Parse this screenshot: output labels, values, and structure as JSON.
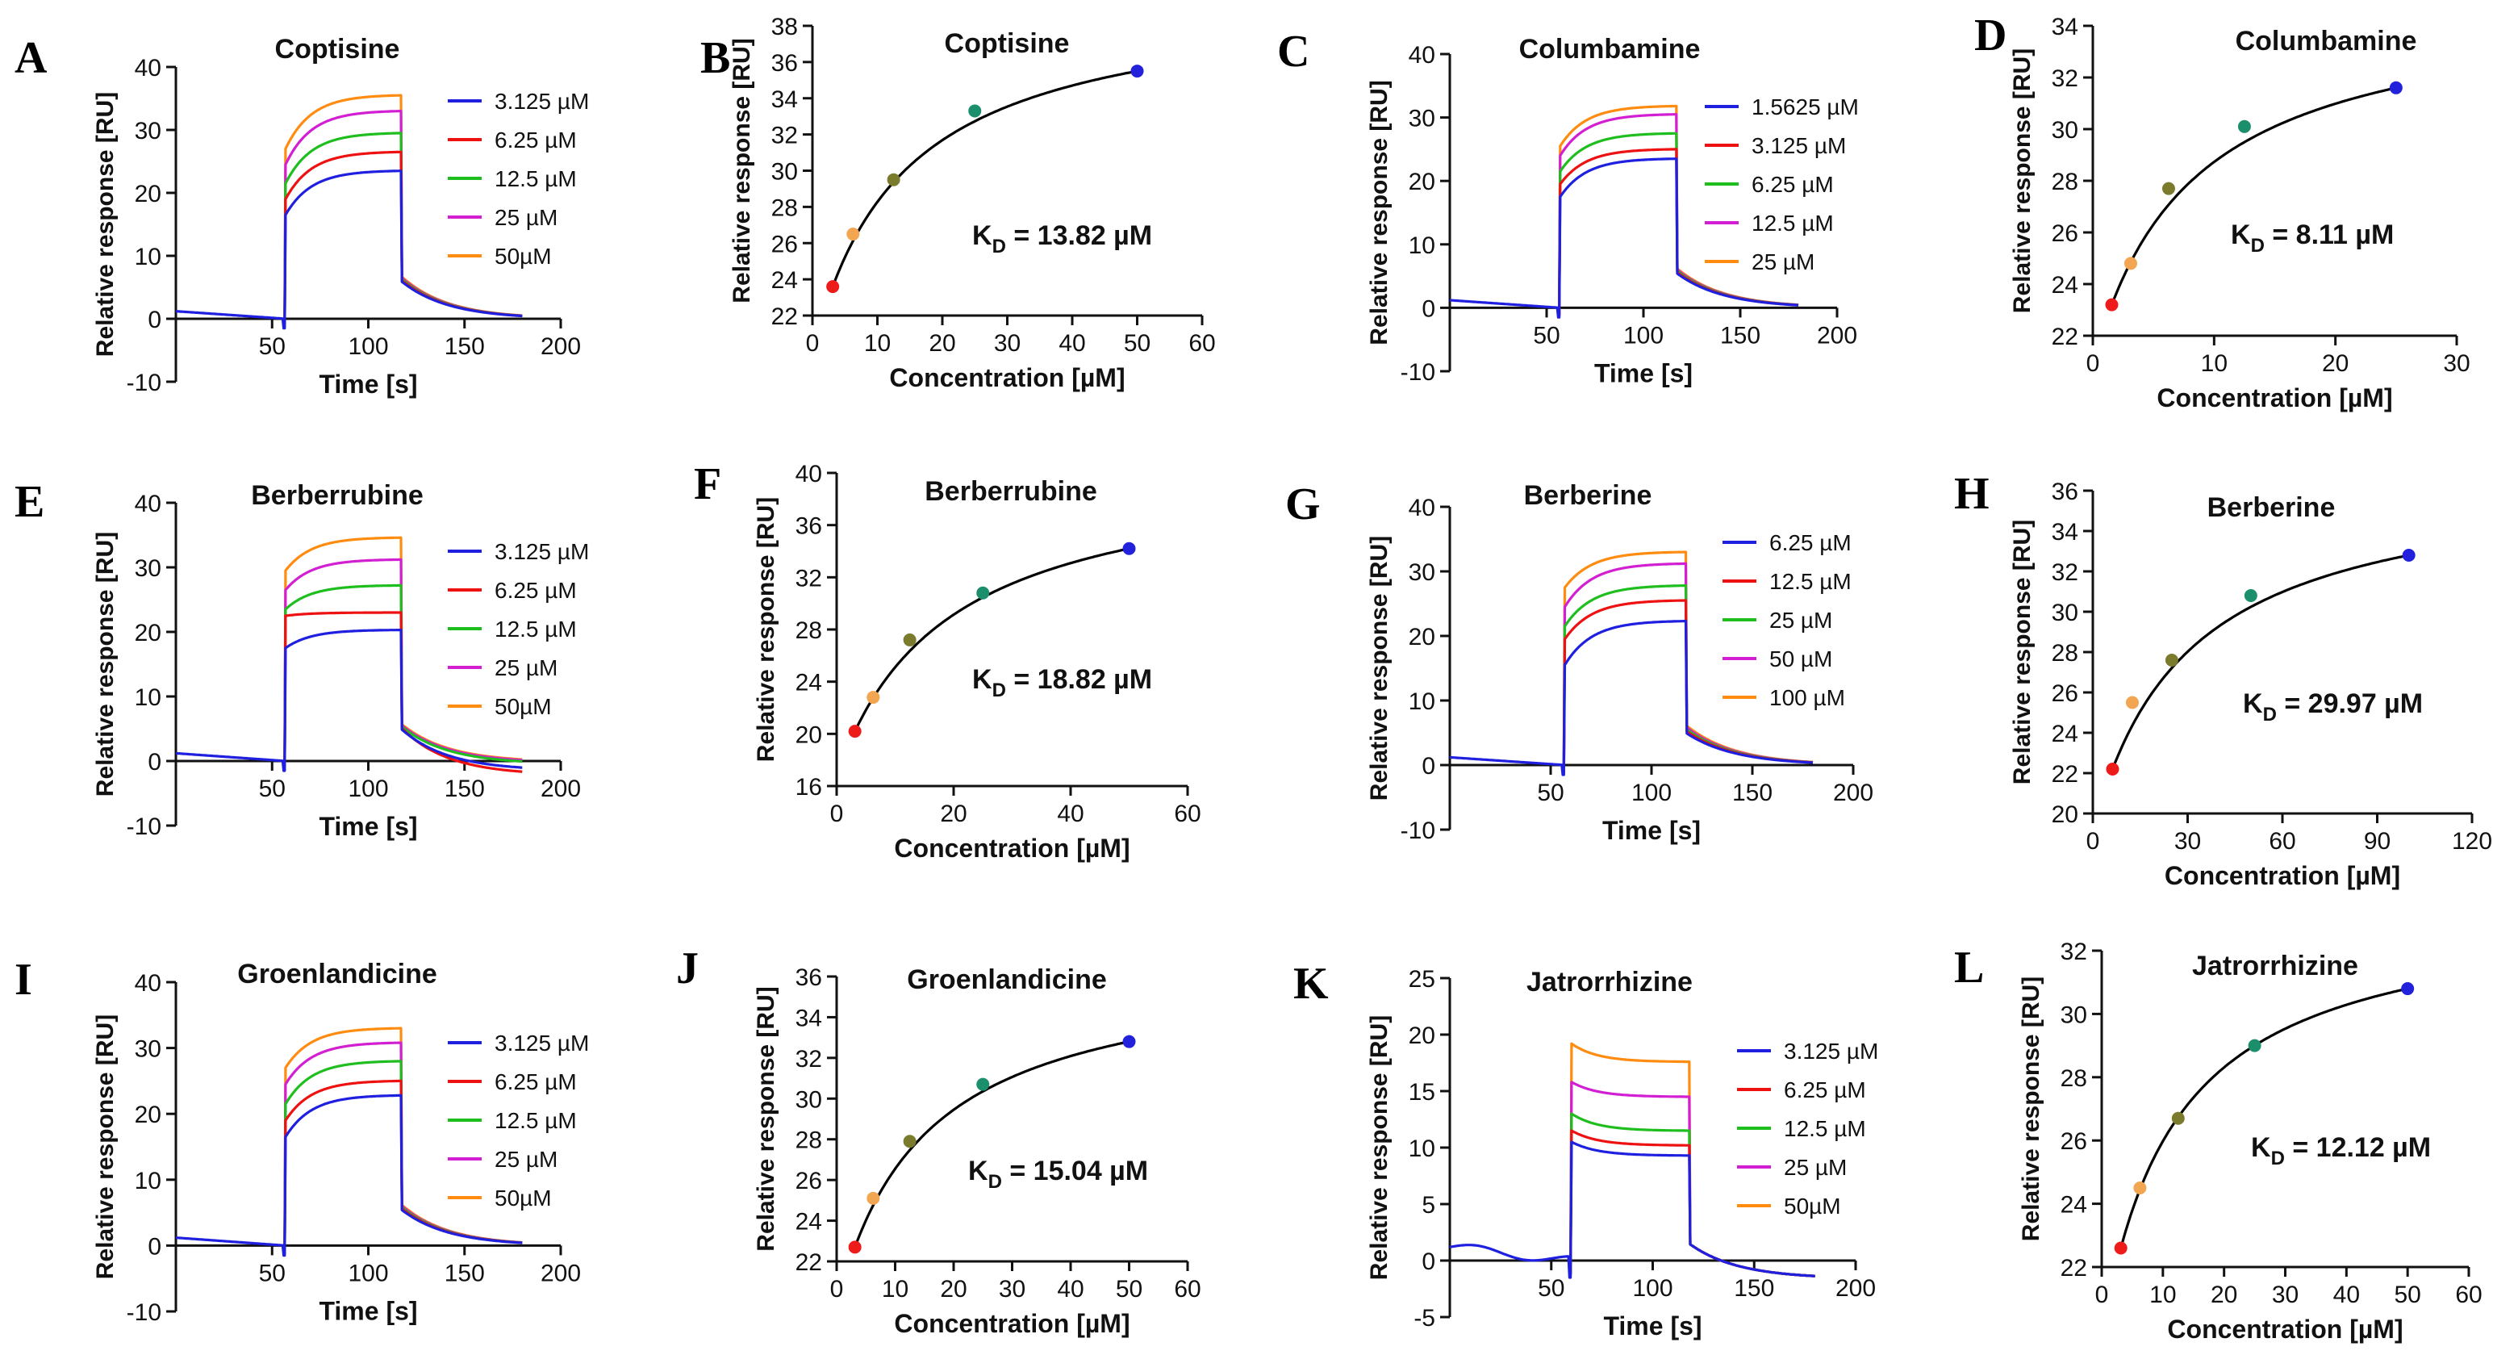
{
  "figure": {
    "background": "#ffffff",
    "axis_color": "#111111"
  },
  "colors": {
    "blue": "#1f1fe0",
    "red": "#ee1111",
    "green": "#1fbe1f",
    "magenta": "#d21fd2",
    "orange": "#ff8c10",
    "dot_red": "#ee1b1b",
    "dot_orange": "#f3a652",
    "dot_olive": "#7b7b2e",
    "dot_teal": "#1b8f6b",
    "dot_blue": "#2222dd",
    "fit_line": "#000000"
  },
  "chart_data": [
    {
      "panel": "A",
      "type": "line",
      "title": "Coptisine",
      "xlabel": "Time [s]",
      "ylabel": "Relative response [RU]",
      "xlim": [
        0,
        200
      ],
      "ylim": [
        -10,
        40
      ],
      "xticks": [
        50,
        100,
        150,
        200
      ],
      "yticks": [
        -10,
        0,
        10,
        20,
        30,
        40
      ],
      "xtick_labels": [
        "50",
        "100",
        "150",
        "200"
      ],
      "ytick_labels": [
        "-10",
        "0",
        "10",
        "20",
        "30",
        "40"
      ],
      "legend_position": "right",
      "sensorgram": {
        "inject_start": 57,
        "inject_end": 117,
        "end": 180
      },
      "series": [
        {
          "name": "3.125 µM",
          "color": "blue",
          "start": 16.5,
          "plateau": 23.5,
          "dip": -1.5,
          "d0": 6
        },
        {
          "name": "6.25 µM",
          "color": "red",
          "start": 19,
          "plateau": 26.5,
          "dip": -1.2,
          "d0": 6.2
        },
        {
          "name": "12.5 µM",
          "color": "green",
          "start": 21.5,
          "plateau": 29.5,
          "dip": -1.2,
          "d0": 6.4
        },
        {
          "name": "25 µM",
          "color": "magenta",
          "start": 24.5,
          "plateau": 33,
          "dip": -1.2,
          "d0": 6.6
        },
        {
          "name": "50µM",
          "color": "orange",
          "start": 27,
          "plateau": 35.5,
          "dip": -1.2,
          "d0": 6.8
        }
      ]
    },
    {
      "panel": "B",
      "type": "scatter",
      "title": "Coptisine",
      "xlabel": "Concentration [µM]",
      "ylabel": "Relative response [RU]",
      "xlim": [
        0,
        60
      ],
      "ylim": [
        22,
        38
      ],
      "xticks": [
        0,
        10,
        20,
        30,
        40,
        50,
        60
      ],
      "yticks": [
        22,
        24,
        26,
        28,
        30,
        32,
        34,
        36,
        38
      ],
      "xtick_labels": [
        "0",
        "10",
        "20",
        "30",
        "40",
        "50",
        "60"
      ],
      "ytick_labels": [
        "22",
        "24",
        "26",
        "28",
        "30",
        "32",
        "34",
        "36",
        "38"
      ],
      "kd_label": "K",
      "kd_sub": "D",
      "kd_value": " = 13.82 µM",
      "points": [
        {
          "x": 3.125,
          "y": 23.6,
          "color": "dot_red"
        },
        {
          "x": 6.25,
          "y": 26.5,
          "color": "dot_orange"
        },
        {
          "x": 12.5,
          "y": 29.5,
          "color": "dot_olive"
        },
        {
          "x": 25,
          "y": 33.3,
          "color": "dot_teal"
        },
        {
          "x": 50,
          "y": 35.5,
          "color": "dot_blue"
        }
      ]
    },
    {
      "panel": "C",
      "type": "line",
      "title": "Columbamine",
      "xlabel": "Time [s]",
      "ylabel": "Relative response [RU]",
      "xlim": [
        0,
        200
      ],
      "ylim": [
        -10,
        40
      ],
      "xticks": [
        50,
        100,
        150,
        200
      ],
      "yticks": [
        -10,
        0,
        10,
        20,
        30,
        40
      ],
      "xtick_labels": [
        "50",
        "100",
        "150",
        "200"
      ],
      "ytick_labels": [
        "-10",
        "0",
        "10",
        "20",
        "30",
        "40"
      ],
      "legend_position": "right",
      "sensorgram": {
        "inject_start": 57,
        "inject_end": 117,
        "end": 180
      },
      "series": [
        {
          "name": "1.5625 µM",
          "color": "blue",
          "start": 17.5,
          "plateau": 23.5,
          "dip": -1.5,
          "d0": 5.5
        },
        {
          "name": "3.125 µM",
          "color": "red",
          "start": 19.5,
          "plateau": 25,
          "dip": -1.2,
          "d0": 5.7
        },
        {
          "name": "6.25 µM",
          "color": "green",
          "start": 21.5,
          "plateau": 27.5,
          "dip": -1.2,
          "d0": 5.9
        },
        {
          "name": "12.5 µM",
          "color": "magenta",
          "start": 24,
          "plateau": 30.5,
          "dip": -1.2,
          "d0": 6.1
        },
        {
          "name": "25 µM",
          "color": "orange",
          "start": 25.5,
          "plateau": 31.8,
          "dip": -1.2,
          "d0": 6.3
        }
      ]
    },
    {
      "panel": "D",
      "type": "scatter",
      "title": "Columbamine",
      "xlabel": "Concentration [µM]",
      "ylabel": "Relative response [RU]",
      "xlim": [
        0,
        30
      ],
      "ylim": [
        22,
        34
      ],
      "xticks": [
        0,
        10,
        20,
        30
      ],
      "yticks": [
        22,
        24,
        26,
        28,
        30,
        32,
        34
      ],
      "xtick_labels": [
        "0",
        "10",
        "20",
        "30"
      ],
      "ytick_labels": [
        "22",
        "24",
        "26",
        "28",
        "30",
        "32",
        "34"
      ],
      "kd_label": "K",
      "kd_sub": "D",
      "kd_value": " = 8.11 µM",
      "points": [
        {
          "x": 1.5625,
          "y": 23.2,
          "color": "dot_red"
        },
        {
          "x": 3.125,
          "y": 24.8,
          "color": "dot_orange"
        },
        {
          "x": 6.25,
          "y": 27.7,
          "color": "dot_olive"
        },
        {
          "x": 12.5,
          "y": 30.1,
          "color": "dot_teal"
        },
        {
          "x": 25,
          "y": 31.6,
          "color": "dot_blue"
        }
      ]
    },
    {
      "panel": "E",
      "type": "line",
      "title": "Berberrubine",
      "xlabel": "Time [s]",
      "ylabel": "Relative response [RU]",
      "xlim": [
        0,
        200
      ],
      "ylim": [
        -10,
        40
      ],
      "xticks": [
        50,
        100,
        150,
        200
      ],
      "yticks": [
        -10,
        0,
        10,
        20,
        30,
        40
      ],
      "xtick_labels": [
        "50",
        "100",
        "150",
        "200"
      ],
      "ytick_labels": [
        "-10",
        "0",
        "10",
        "20",
        "30",
        "40"
      ],
      "legend_position": "right",
      "sensorgram": {
        "inject_start": 57,
        "inject_end": 117,
        "end": 180
      },
      "series": [
        {
          "name": "3.125 µM",
          "color": "blue",
          "start": 17.5,
          "plateau": 20.3,
          "dip": -1.5,
          "d0": 5,
          "tail": -1.5
        },
        {
          "name": "6.25 µM",
          "color": "red",
          "start": 22.5,
          "plateau": 23,
          "dip": -1.2,
          "d0": 5.2,
          "tail": -2.2
        },
        {
          "name": "12.5 µM",
          "color": "green",
          "start": 23.5,
          "plateau": 27.2,
          "dip": -1.2,
          "d0": 5.4,
          "tail": -0.5
        },
        {
          "name": "25 µM",
          "color": "magenta",
          "start": 26.5,
          "plateau": 31.2,
          "dip": -1.2,
          "d0": 5.6,
          "tail": -0.3
        },
        {
          "name": "50µM",
          "color": "orange",
          "start": 29.5,
          "plateau": 34.6,
          "dip": -1.2,
          "d0": 5.8,
          "tail": -0.2
        }
      ]
    },
    {
      "panel": "F",
      "type": "scatter",
      "title": "Berberrubine",
      "xlabel": "Concentration [µM]",
      "ylabel": "Relative response [RU]",
      "xlim": [
        0,
        60
      ],
      "ylim": [
        16,
        40
      ],
      "xticks": [
        0,
        20,
        40,
        60
      ],
      "yticks": [
        16,
        20,
        24,
        28,
        32,
        36,
        40
      ],
      "xtick_labels": [
        "0",
        "20",
        "40",
        "60"
      ],
      "ytick_labels": [
        "16",
        "20",
        "24",
        "28",
        "32",
        "36",
        "40"
      ],
      "kd_label": "K",
      "kd_sub": "D",
      "kd_value": " = 18.82 µM",
      "points": [
        {
          "x": 3.125,
          "y": 20.2,
          "color": "dot_red"
        },
        {
          "x": 6.25,
          "y": 22.8,
          "color": "dot_orange"
        },
        {
          "x": 12.5,
          "y": 27.2,
          "color": "dot_olive"
        },
        {
          "x": 25,
          "y": 30.8,
          "color": "dot_teal"
        },
        {
          "x": 50,
          "y": 34.2,
          "color": "dot_blue"
        }
      ]
    },
    {
      "panel": "G",
      "type": "line",
      "title": "Berberine",
      "xlabel": "Time [s]",
      "ylabel": "Relative response [RU]",
      "xlim": [
        0,
        200
      ],
      "ylim": [
        -10,
        40
      ],
      "xticks": [
        50,
        100,
        150,
        200
      ],
      "yticks": [
        -10,
        0,
        10,
        20,
        30,
        40
      ],
      "xtick_labels": [
        "50",
        "100",
        "150",
        "200"
      ],
      "ytick_labels": [
        "-10",
        "0",
        "10",
        "20",
        "30",
        "40"
      ],
      "legend_position": "right",
      "sensorgram": {
        "inject_start": 57,
        "inject_end": 117,
        "end": 180
      },
      "series": [
        {
          "name": "6.25 µM",
          "color": "blue",
          "start": 15.5,
          "plateau": 22.3,
          "dip": -1.5,
          "d0": 5
        },
        {
          "name": "12.5 µM",
          "color": "red",
          "start": 19.5,
          "plateau": 25.5,
          "dip": -1.2,
          "d0": 5.3
        },
        {
          "name": "25 µM",
          "color": "green",
          "start": 21.5,
          "plateau": 27.8,
          "dip": -1.2,
          "d0": 5.6
        },
        {
          "name": "50 µM",
          "color": "magenta",
          "start": 24.5,
          "plateau": 31.2,
          "dip": -1.2,
          "d0": 5.9
        },
        {
          "name": "100 µM",
          "color": "orange",
          "start": 27.5,
          "plateau": 33,
          "dip": -1.2,
          "d0": 6.2
        }
      ]
    },
    {
      "panel": "H",
      "type": "scatter",
      "title": "Berberine",
      "xlabel": "Concentration [µM]",
      "ylabel": "Relative response [RU]",
      "xlim": [
        0,
        120
      ],
      "ylim": [
        20,
        36
      ],
      "xticks": [
        0,
        30,
        60,
        90,
        120
      ],
      "yticks": [
        20,
        22,
        24,
        26,
        28,
        30,
        32,
        34,
        36
      ],
      "xtick_labels": [
        "0",
        "30",
        "60",
        "90",
        "120"
      ],
      "ytick_labels": [
        "20",
        "22",
        "24",
        "26",
        "28",
        "30",
        "32",
        "34",
        "36"
      ],
      "kd_label": "K",
      "kd_sub": "D",
      "kd_value": " = 29.97 µM",
      "points": [
        {
          "x": 6.25,
          "y": 22.2,
          "color": "dot_red"
        },
        {
          "x": 12.5,
          "y": 25.5,
          "color": "dot_orange"
        },
        {
          "x": 25,
          "y": 27.6,
          "color": "dot_olive"
        },
        {
          "x": 50,
          "y": 30.8,
          "color": "dot_teal"
        },
        {
          "x": 100,
          "y": 32.8,
          "color": "dot_blue"
        }
      ]
    },
    {
      "panel": "I",
      "type": "line",
      "title": "Groenlandicine",
      "xlabel": "Time [s]",
      "ylabel": "Relative response [RU]",
      "xlim": [
        0,
        200
      ],
      "ylim": [
        -10,
        40
      ],
      "xticks": [
        50,
        100,
        150,
        200
      ],
      "yticks": [
        -10,
        0,
        10,
        20,
        30,
        40
      ],
      "xtick_labels": [
        "50",
        "100",
        "150",
        "200"
      ],
      "ytick_labels": [
        "-10",
        "0",
        "10",
        "20",
        "30",
        "40"
      ],
      "legend_position": "right",
      "sensorgram": {
        "inject_start": 57,
        "inject_end": 117,
        "end": 180
      },
      "series": [
        {
          "name": "3.125 µM",
          "color": "blue",
          "start": 16.5,
          "plateau": 22.8,
          "dip": -1.5,
          "d0": 5.5
        },
        {
          "name": "6.25 µM",
          "color": "red",
          "start": 19,
          "plateau": 25,
          "dip": -1.2,
          "d0": 5.7
        },
        {
          "name": "12.5 µM",
          "color": "green",
          "start": 21.5,
          "plateau": 28,
          "dip": -1.2,
          "d0": 5.9
        },
        {
          "name": "25 µM",
          "color": "magenta",
          "start": 24.5,
          "plateau": 30.8,
          "dip": -1.2,
          "d0": 6.1
        },
        {
          "name": "50µM",
          "color": "orange",
          "start": 27,
          "plateau": 33,
          "dip": -1.2,
          "d0": 6.3
        }
      ]
    },
    {
      "panel": "J",
      "type": "scatter",
      "title": "Groenlandicine",
      "xlabel": "Concentration [µM]",
      "ylabel": "Relative response [RU]",
      "xlim": [
        0,
        60
      ],
      "ylim": [
        22,
        36
      ],
      "xticks": [
        0,
        10,
        20,
        30,
        40,
        50,
        60
      ],
      "yticks": [
        22,
        24,
        26,
        28,
        30,
        32,
        34,
        36
      ],
      "xtick_labels": [
        "0",
        "10",
        "20",
        "30",
        "40",
        "50",
        "60"
      ],
      "ytick_labels": [
        "22",
        "24",
        "26",
        "28",
        "30",
        "32",
        "34",
        "36"
      ],
      "kd_label": "K",
      "kd_sub": "D",
      "kd_value": " = 15.04 µM",
      "points": [
        {
          "x": 3.125,
          "y": 22.7,
          "color": "dot_red"
        },
        {
          "x": 6.25,
          "y": 25.1,
          "color": "dot_orange"
        },
        {
          "x": 12.5,
          "y": 27.9,
          "color": "dot_olive"
        },
        {
          "x": 25,
          "y": 30.7,
          "color": "dot_teal"
        },
        {
          "x": 50,
          "y": 32.8,
          "color": "dot_blue"
        }
      ]
    },
    {
      "panel": "K",
      "type": "line",
      "title": "Jatrorrhizine",
      "xlabel": "Time [s]",
      "ylabel": "Relative response [RU]",
      "xlim": [
        0,
        200
      ],
      "ylim": [
        -5,
        25
      ],
      "xticks": [
        50,
        100,
        150,
        200
      ],
      "yticks": [
        -5,
        0,
        5,
        10,
        15,
        20,
        25
      ],
      "xtick_labels": [
        "50",
        "100",
        "150",
        "200"
      ],
      "ytick_labels": [
        "-5",
        "0",
        "5",
        "10",
        "15",
        "20",
        "25"
      ],
      "legend_position": "right",
      "sensorgram": {
        "inject_start": 60,
        "inject_end": 118,
        "end": 180,
        "wave": true,
        "post": -1.6
      },
      "series": [
        {
          "name": "3.125 µM",
          "color": "blue",
          "start": 10.5,
          "plateau": 9.3,
          "dip": -1.5,
          "d0": 1.5
        },
        {
          "name": "6.25 µM",
          "color": "red",
          "start": 11.5,
          "plateau": 10.2,
          "dip": -1.2,
          "d0": 1.5
        },
        {
          "name": "12.5 µM",
          "color": "green",
          "start": 13,
          "plateau": 11.5,
          "dip": -1.2,
          "d0": 1.5
        },
        {
          "name": "25 µM",
          "color": "magenta",
          "start": 15.8,
          "plateau": 14.5,
          "dip": -1.2,
          "d0": 1.5
        },
        {
          "name": "50µM",
          "color": "orange",
          "start": 19.2,
          "plateau": 17.6,
          "dip": -1.2,
          "d0": 1.5
        }
      ]
    },
    {
      "panel": "L",
      "type": "scatter",
      "title": "Jatrorrhizine",
      "xlabel": "Concentration [µM]",
      "ylabel": "Relative response [RU]",
      "xlim": [
        0,
        60
      ],
      "ylim": [
        22,
        32
      ],
      "xticks": [
        0,
        10,
        20,
        30,
        40,
        50,
        60
      ],
      "yticks": [
        22,
        24,
        26,
        28,
        30,
        32
      ],
      "xtick_labels": [
        "0",
        "10",
        "20",
        "30",
        "40",
        "50",
        "60"
      ],
      "ytick_labels": [
        "22",
        "24",
        "26",
        "28",
        "30",
        "32"
      ],
      "kd_label": "K",
      "kd_sub": "D",
      "kd_value": " = 12.12 µM",
      "points": [
        {
          "x": 3.125,
          "y": 22.6,
          "color": "dot_red"
        },
        {
          "x": 6.25,
          "y": 24.5,
          "color": "dot_orange"
        },
        {
          "x": 12.5,
          "y": 26.7,
          "color": "dot_olive"
        },
        {
          "x": 25,
          "y": 29,
          "color": "dot_teal"
        },
        {
          "x": 50,
          "y": 30.8,
          "color": "dot_blue"
        }
      ]
    }
  ]
}
